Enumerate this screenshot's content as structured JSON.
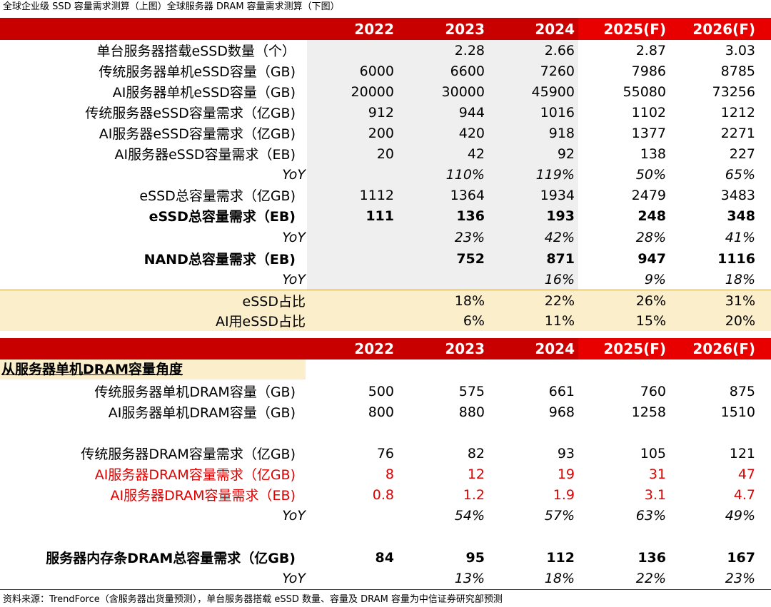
{
  "caption": "全球企业级 SSD 容量需求测算（上图）全球服务器 DRAM 容量需求测算（下图）",
  "years": [
    "2022",
    "2023",
    "2024",
    "2025(F)",
    "2026(F)"
  ],
  "ssd_rows": [
    {
      "label": "单台服务器搭载eSSD数量（个）",
      "vals": [
        "",
        "2.28",
        "2.66",
        "2.87",
        "3.03"
      ]
    },
    {
      "label": "传统服务器单机eSSD容量（GB)",
      "vals": [
        "6000",
        "6600",
        "7260",
        "7986",
        "8785"
      ]
    },
    {
      "label": "AI服务器单机eSSD容量（GB)",
      "vals": [
        "20000",
        "30000",
        "45900",
        "55080",
        "73256"
      ]
    },
    {
      "label": "传统服务器eSSD容量需求（亿GB)",
      "vals": [
        "912",
        "944",
        "1016",
        "1102",
        "1212"
      ]
    },
    {
      "label": "AI服务器eSSD容量需求（亿GB)",
      "vals": [
        "200",
        "420",
        "918",
        "1377",
        "2271"
      ]
    },
    {
      "label": "AI服务器eSSD容量需求（EB)",
      "vals": [
        "20",
        "42",
        "92",
        "138",
        "227"
      ]
    },
    {
      "label": "YoY",
      "vals": [
        "",
        "110%",
        "119%",
        "50%",
        "65%"
      ]
    },
    {
      "label": "eSSD总容量需求（亿GB)",
      "vals": [
        "1112",
        "1364",
        "1934",
        "2479",
        "3483"
      ]
    },
    {
      "label": "eSSD总容量需求（EB)",
      "vals": [
        "111",
        "136",
        "193",
        "248",
        "348"
      ]
    },
    {
      "label": "YoY",
      "vals": [
        "",
        "23%",
        "42%",
        "28%",
        "41%"
      ]
    },
    {
      "label": "NAND总容量需求（EB)",
      "vals": [
        "",
        "752",
        "871",
        "947",
        "1116"
      ]
    },
    {
      "label": "YoY",
      "vals": [
        "",
        "",
        "16%",
        "9%",
        "18%"
      ]
    },
    {
      "label": "eSSD占比",
      "vals": [
        "",
        "18%",
        "22%",
        "26%",
        "31%"
      ]
    },
    {
      "label": "AI用eSSD占比",
      "vals": [
        "",
        "6%",
        "11%",
        "15%",
        "20%"
      ]
    }
  ],
  "dram_section_title": "从服务器单机DRAM容量角度",
  "dram_rows": [
    {
      "label": "传统服务器单机DRAM容量（GB)",
      "vals": [
        "500",
        "575",
        "661",
        "760",
        "875"
      ]
    },
    {
      "label": "AI服务器单机DRAM容量（GB)",
      "vals": [
        "800",
        "880",
        "968",
        "1258",
        "1510"
      ]
    },
    {
      "label": "传统服务器DRAM容量需求（亿GB)",
      "vals": [
        "76",
        "82",
        "93",
        "105",
        "121"
      ]
    },
    {
      "label": "AI服务器DRAM容量需求（亿GB)",
      "vals": [
        "8",
        "12",
        "19",
        "31",
        "47"
      ]
    },
    {
      "label": "AI服务器DRAM容量需求（EB)",
      "vals": [
        "0.8",
        "1.2",
        "1.9",
        "3.1",
        "4.7"
      ]
    },
    {
      "label": "YoY",
      "vals": [
        "",
        "54%",
        "57%",
        "63%",
        "49%"
      ]
    },
    {
      "label": "服务器内存条DRAM总容量需求（亿GB)",
      "vals": [
        "84",
        "95",
        "112",
        "136",
        "167"
      ]
    },
    {
      "label": "YoY",
      "vals": [
        "",
        "13%",
        "18%",
        "22%",
        "23%"
      ]
    }
  ],
  "source": "资料来源：TrendForce（含服务器出货量预测），单台服务器搭载 eSSD 数量、容量及 DRAM 容量为中信证券研究部预测",
  "colors": {
    "header_red": "#c80000",
    "forecast_red": "#e80000",
    "highlight_red": "#e00000",
    "beige": "#fbeecb",
    "gray_shade": "#efefef"
  }
}
